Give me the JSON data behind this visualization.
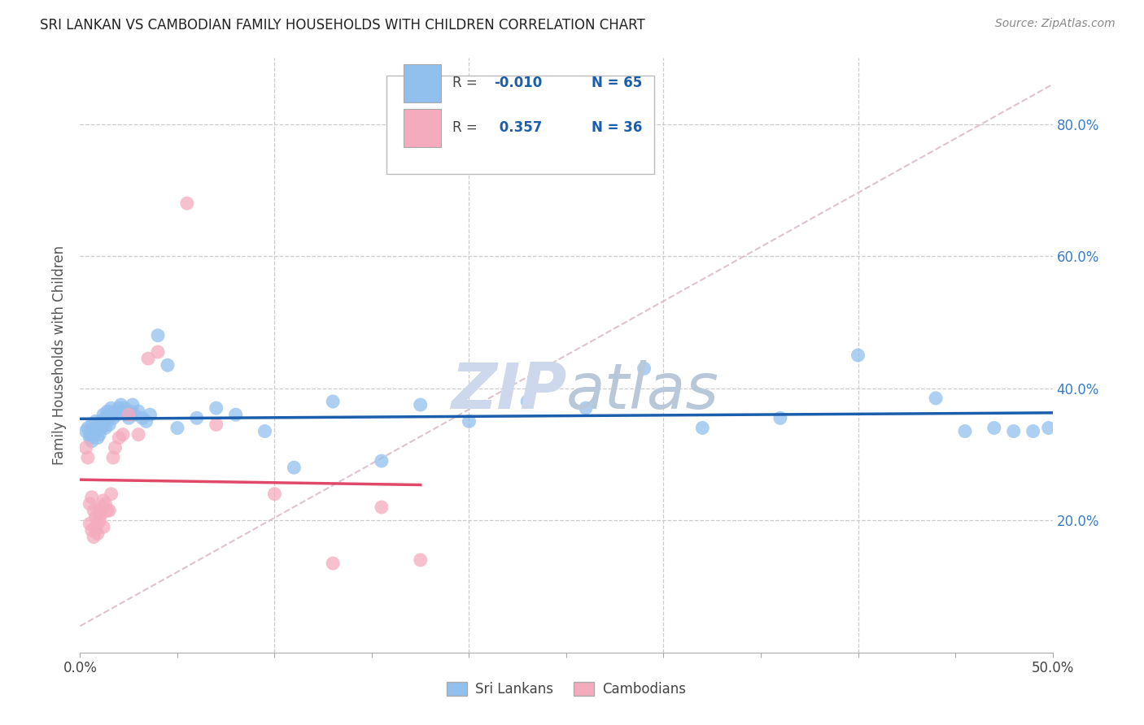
{
  "title": "SRI LANKAN VS CAMBODIAN FAMILY HOUSEHOLDS WITH CHILDREN CORRELATION CHART",
  "source": "Source: ZipAtlas.com",
  "ylabel": "Family Households with Children",
  "xlim": [
    0.0,
    0.5
  ],
  "ylim": [
    0.0,
    0.9
  ],
  "yticks_right": [
    0.2,
    0.4,
    0.6,
    0.8
  ],
  "yticklabels_right": [
    "20.0%",
    "40.0%",
    "60.0%",
    "80.0%"
  ],
  "legend_r1": "R = -0.010",
  "legend_r2": "R =  0.357",
  "legend_n1": "N = 65",
  "legend_n2": "N = 36",
  "sri_lankan_color": "#92C0EE",
  "cambodian_color": "#F4ABBE",
  "sri_lankan_line_color": "#1B5EAB",
  "cambodian_line_color": "#E0496A",
  "diagonal_color": "#DDBBCC",
  "background_color": "#FFFFFF",
  "watermark_color": "#CDD8EC",
  "grid_color": "#CCCCCC",
  "sri_lankans_x": [
    0.003,
    0.004,
    0.005,
    0.005,
    0.006,
    0.006,
    0.007,
    0.007,
    0.008,
    0.008,
    0.009,
    0.009,
    0.01,
    0.01,
    0.011,
    0.011,
    0.012,
    0.012,
    0.013,
    0.013,
    0.014,
    0.014,
    0.015,
    0.015,
    0.016,
    0.017,
    0.018,
    0.019,
    0.02,
    0.021,
    0.022,
    0.023,
    0.024,
    0.025,
    0.026,
    0.027,
    0.028,
    0.03,
    0.032,
    0.034,
    0.036,
    0.04,
    0.045,
    0.05,
    0.06,
    0.07,
    0.08,
    0.095,
    0.11,
    0.13,
    0.155,
    0.175,
    0.2,
    0.23,
    0.26,
    0.29,
    0.32,
    0.36,
    0.4,
    0.44,
    0.455,
    0.47,
    0.48,
    0.49,
    0.498
  ],
  "sri_lankans_y": [
    0.335,
    0.34,
    0.33,
    0.325,
    0.32,
    0.345,
    0.335,
    0.33,
    0.34,
    0.35,
    0.325,
    0.335,
    0.345,
    0.33,
    0.34,
    0.35,
    0.36,
    0.345,
    0.355,
    0.34,
    0.365,
    0.35,
    0.36,
    0.345,
    0.37,
    0.355,
    0.365,
    0.36,
    0.37,
    0.375,
    0.365,
    0.37,
    0.36,
    0.355,
    0.365,
    0.375,
    0.36,
    0.365,
    0.355,
    0.35,
    0.36,
    0.48,
    0.435,
    0.34,
    0.355,
    0.37,
    0.36,
    0.335,
    0.28,
    0.38,
    0.29,
    0.375,
    0.35,
    0.38,
    0.37,
    0.43,
    0.34,
    0.355,
    0.45,
    0.385,
    0.335,
    0.34,
    0.335,
    0.335,
    0.34
  ],
  "cambodians_x": [
    0.003,
    0.004,
    0.005,
    0.005,
    0.006,
    0.006,
    0.007,
    0.007,
    0.008,
    0.008,
    0.009,
    0.009,
    0.01,
    0.01,
    0.011,
    0.011,
    0.012,
    0.012,
    0.013,
    0.014,
    0.015,
    0.016,
    0.017,
    0.018,
    0.02,
    0.022,
    0.025,
    0.03,
    0.035,
    0.04,
    0.055,
    0.07,
    0.1,
    0.13,
    0.155,
    0.175
  ],
  "cambodians_y": [
    0.31,
    0.295,
    0.225,
    0.195,
    0.235,
    0.185,
    0.215,
    0.175,
    0.185,
    0.205,
    0.18,
    0.195,
    0.215,
    0.2,
    0.22,
    0.21,
    0.23,
    0.19,
    0.225,
    0.215,
    0.215,
    0.24,
    0.295,
    0.31,
    0.325,
    0.33,
    0.36,
    0.33,
    0.445,
    0.455,
    0.68,
    0.345,
    0.24,
    0.135,
    0.22,
    0.14
  ]
}
